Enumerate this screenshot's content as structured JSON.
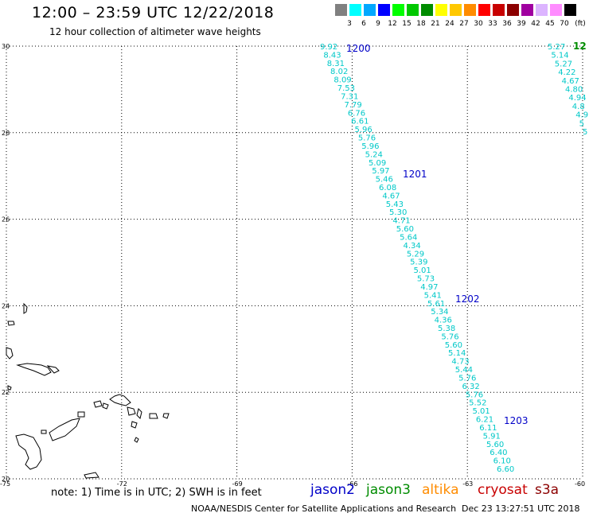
{
  "header": {
    "title": "12:00 – 23:59 UTC 12/22/2018",
    "subtitle": "12 hour collection of altimeter wave heights"
  },
  "legend": {
    "unit": "(ft)",
    "bins": [
      {
        "label": "3",
        "color": "#808080"
      },
      {
        "label": "6",
        "color": "#00ffff"
      },
      {
        "label": "9",
        "color": "#00a8ff"
      },
      {
        "label": "12",
        "color": "#0000ff"
      },
      {
        "label": "15",
        "color": "#00ff00"
      },
      {
        "label": "18",
        "color": "#00c800"
      },
      {
        "label": "21",
        "color": "#008c00"
      },
      {
        "label": "24",
        "color": "#ffff00"
      },
      {
        "label": "27",
        "color": "#ffc800"
      },
      {
        "label": "30",
        "color": "#ff8c00"
      },
      {
        "label": "33",
        "color": "#ff0000"
      },
      {
        "label": "36",
        "color": "#c80000"
      },
      {
        "label": "39",
        "color": "#8c0000"
      },
      {
        "label": "42",
        "color": "#a000a0"
      },
      {
        "label": "45",
        "color": "#dcb4ff"
      },
      {
        "label": "70",
        "color": "#ff8cff"
      },
      {
        "label": "",
        "color": "#000000"
      }
    ]
  },
  "axes": {
    "lon_labels": [
      "-75",
      "-72",
      "-69",
      "-66",
      "-63",
      "-60"
    ],
    "lat_labels": [
      "30",
      "28",
      "26",
      "24",
      "22",
      "20"
    ],
    "lon_range": [
      -75,
      -60
    ],
    "lat_range": [
      20,
      30
    ]
  },
  "track_main": {
    "color": "#00c8c8",
    "values": [
      "9.92",
      "8.43",
      "8.31",
      "8.02",
      "8.09",
      "7.53",
      "7.31",
      "7.79",
      "6.76",
      "6.61",
      "5.96",
      "5.76",
      "5.96",
      "5.24",
      "5.09",
      "5.97",
      "5.46",
      "6.08",
      "4.67",
      "5.43",
      "5.30",
      "4.71",
      "5.60",
      "5.64",
      "4.34",
      "5.29",
      "5.39",
      "5.01",
      "5.73",
      "4.97",
      "5.41",
      "5.61",
      "5.34",
      "4.36",
      "5.38",
      "5.76",
      "5.60",
      "5.14",
      "4.73",
      "5.44",
      "5.76",
      "6.32",
      "5.76",
      "5.52",
      "5.01",
      "6.21",
      "6.11",
      "5.91",
      "5.60",
      "6.40",
      "6.10",
      "6.60"
    ]
  },
  "track_right": {
    "values": [
      "5.27",
      "5.14",
      "5.27",
      "4.22",
      "4.67",
      "4.80",
      "4.94",
      "4.8",
      "4.9",
      "5",
      "5"
    ]
  },
  "time_labels": [
    {
      "text": "1200",
      "color": "#0000c8"
    },
    {
      "text": "1201",
      "color": "#0000c8"
    },
    {
      "text": "1202",
      "color": "#0000c8"
    },
    {
      "text": "1203",
      "color": "#0000c8"
    },
    {
      "text": "12",
      "color": "#008c00"
    }
  ],
  "footer": {
    "note": "note:  1) Time is in UTC;  2) SWH is in feet",
    "satellites": [
      {
        "name": "jason2",
        "color": "#0000c8"
      },
      {
        "name": "jason3",
        "color": "#008c00"
      },
      {
        "name": "altika",
        "color": "#ff8c00"
      },
      {
        "name": "cryosat",
        "color": "#c80000"
      },
      {
        "name": "s3a",
        "color": "#8c0000"
      }
    ],
    "credit": "NOAA/NESDIS Center for Satellite Applications and Research",
    "timestamp": "Dec 23 13:27:51 UTC 2018"
  }
}
